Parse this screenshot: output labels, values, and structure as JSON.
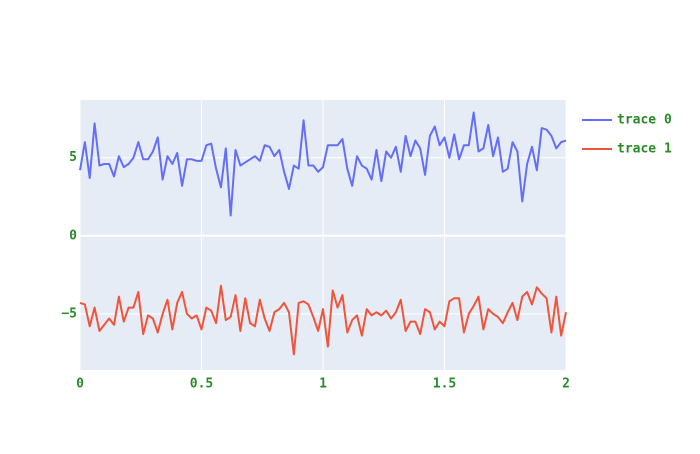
{
  "chart_data": {
    "type": "line",
    "x": [
      0,
      0.02,
      0.04,
      0.06,
      0.08,
      0.1,
      0.12,
      0.14,
      0.16,
      0.18,
      0.2,
      0.22,
      0.24,
      0.26,
      0.28,
      0.3,
      0.32,
      0.34,
      0.36,
      0.38,
      0.4,
      0.42,
      0.44,
      0.46,
      0.48,
      0.5,
      0.52,
      0.54,
      0.56,
      0.58,
      0.6,
      0.62,
      0.64,
      0.66,
      0.68,
      0.7,
      0.72,
      0.74,
      0.76,
      0.78,
      0.8,
      0.82,
      0.84,
      0.86,
      0.88,
      0.9,
      0.92,
      0.94,
      0.96,
      0.98,
      1,
      1.02,
      1.04,
      1.06,
      1.08,
      1.1,
      1.12,
      1.14,
      1.16,
      1.18,
      1.2,
      1.22,
      1.24,
      1.26,
      1.28,
      1.3,
      1.32,
      1.34,
      1.36,
      1.38,
      1.4,
      1.42,
      1.44,
      1.46,
      1.48,
      1.5,
      1.52,
      1.54,
      1.56,
      1.58,
      1.6,
      1.62,
      1.64,
      1.66,
      1.68,
      1.7,
      1.72,
      1.74,
      1.76,
      1.78,
      1.8,
      1.82,
      1.84,
      1.86,
      1.88,
      1.9,
      1.92,
      1.94,
      1.96,
      1.98,
      2
    ],
    "series": [
      {
        "name": "trace 0",
        "color": "#636efa",
        "values": [
          4.2,
          6.0,
          3.7,
          7.2,
          4.5,
          4.6,
          4.6,
          3.8,
          5.1,
          4.4,
          4.6,
          5.0,
          6.0,
          4.9,
          4.9,
          5.4,
          6.3,
          3.6,
          5.1,
          4.6,
          5.3,
          3.2,
          4.9,
          4.9,
          4.8,
          4.8,
          5.8,
          5.9,
          4.3,
          3.1,
          5.6,
          1.3,
          5.5,
          4.5,
          4.7,
          4.9,
          5.1,
          4.8,
          5.8,
          5.7,
          5.1,
          5.5,
          4.1,
          3.0,
          4.5,
          4.3,
          7.4,
          4.5,
          4.5,
          4.1,
          4.4,
          5.8,
          5.8,
          5.8,
          6.2,
          4.3,
          3.2,
          5.1,
          4.5,
          4.3,
          3.6,
          5.5,
          3.5,
          5.4,
          5.0,
          5.7,
          4.1,
          6.4,
          5.1,
          6.1,
          5.6,
          3.9,
          6.4,
          7.0,
          5.8,
          6.3,
          5.0,
          6.5,
          4.9,
          5.8,
          5.8,
          7.9,
          5.4,
          5.6,
          7.1,
          5.1,
          6.3,
          4.1,
          4.3,
          6.0,
          5.4,
          2.2,
          4.6,
          5.7,
          4.2,
          6.9,
          6.8,
          6.4,
          5.6,
          6.0,
          6.1
        ]
      },
      {
        "name": "trace 1",
        "color": "#ef553b",
        "values": [
          -4.3,
          -4.4,
          -5.8,
          -4.6,
          -6.1,
          -5.7,
          -5.3,
          -5.7,
          -3.9,
          -5.5,
          -4.6,
          -4.6,
          -3.6,
          -6.3,
          -5.1,
          -5.3,
          -6.2,
          -5.0,
          -4.1,
          -6.0,
          -4.3,
          -3.6,
          -5.0,
          -5.3,
          -5.1,
          -6.0,
          -4.6,
          -4.8,
          -5.6,
          -3.2,
          -5.4,
          -5.2,
          -3.8,
          -6.1,
          -4.0,
          -5.6,
          -5.8,
          -4.1,
          -5.3,
          -6.1,
          -4.9,
          -4.7,
          -4.3,
          -4.9,
          -7.6,
          -4.3,
          -4.2,
          -4.4,
          -5.2,
          -6.1,
          -4.7,
          -7.1,
          -3.5,
          -4.6,
          -3.8,
          -6.2,
          -5.4,
          -5.1,
          -6.4,
          -4.7,
          -5.1,
          -4.9,
          -5.1,
          -4.8,
          -5.3,
          -4.9,
          -4.1,
          -6.1,
          -5.5,
          -5.5,
          -6.3,
          -4.7,
          -4.9,
          -6.0,
          -5.5,
          -5.8,
          -4.2,
          -4.0,
          -4.0,
          -6.2,
          -5.0,
          -4.5,
          -3.9,
          -6.0,
          -4.7,
          -5.0,
          -5.2,
          -5.6,
          -4.9,
          -4.3,
          -5.4,
          -3.9,
          -3.6,
          -4.4,
          -3.3,
          -3.7,
          -4.0,
          -6.2,
          -3.9,
          -6.4,
          -4.9
        ]
      }
    ],
    "xlim": [
      0,
      2
    ],
    "xticks": [
      0,
      0.5,
      1,
      1.5,
      2
    ],
    "ylim": [
      -8.6,
      8.7
    ],
    "yticks": [
      {
        "value": -5,
        "label": "−5"
      },
      0,
      5
    ],
    "grid": true,
    "legend": "right"
  }
}
